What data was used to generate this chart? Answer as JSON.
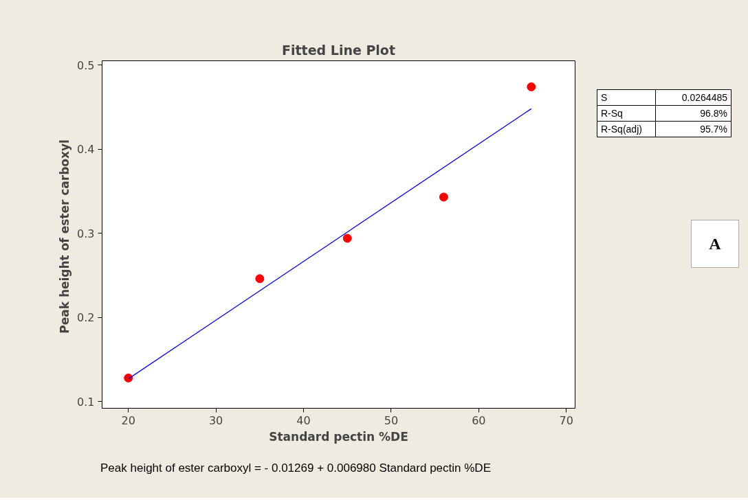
{
  "chart_data": {
    "type": "scatter",
    "title": "Fitted Line Plot",
    "xlabel": "Standard pectin %DE",
    "ylabel": "Peak height  of ester carboxyl",
    "series": [
      {
        "color": "#ff0000",
        "x": [
          20,
          35,
          45,
          56,
          66
        ],
        "values": [
          0.128,
          0.246,
          0.294,
          0.343,
          0.474
        ],
        "marker": "circle"
      },
      {
        "type": "line",
        "color": "#0000ff",
        "x": [
          20,
          66
        ],
        "values": [
          0.127,
          0.448
        ],
        "marker": "none",
        "line_style": "solid"
      }
    ],
    "xlim": [
      17,
      71
    ],
    "ylim": [
      0.092,
      0.505
    ],
    "xticks": [
      20,
      30,
      40,
      50,
      60,
      70
    ],
    "yticks": [
      0.1,
      0.2,
      0.3,
      0.4,
      0.5
    ],
    "grid": false,
    "annotations": [
      "S",
      "0.0264485",
      "R-Sq",
      "96.8%",
      "R-Sq(adj)",
      "95.7%",
      "A",
      "Peak height  of ester carboxyl =  - 0.01269 + 0.006980 Standard pectin %DE"
    ]
  }
}
